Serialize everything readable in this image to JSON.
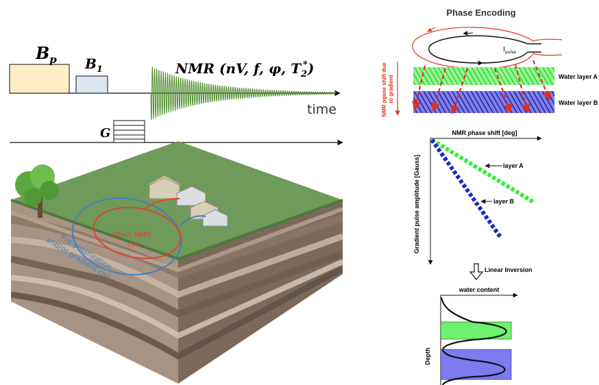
{
  "sequence": {
    "bp_label": "B",
    "bp_sub": "p",
    "b1_label": "B",
    "b1_sub": "1",
    "nmr_label_prefix": "NMR (nV, f, φ, T",
    "nmr_sub": "2",
    "nmr_sup": "*",
    "nmr_label_suffix": ")",
    "time_label": "time",
    "g_label": "G",
    "colors": {
      "bp": "#fdeec6",
      "b1": "#dce6f0",
      "signal": "#4e8b2b"
    }
  },
  "survey": {
    "main_coil_label_1": "Main NMR",
    "main_coil_label_2": "coil",
    "prepol_label_1": "Pre-polarization",
    "prepol_label_2": "and/or gradient coil",
    "colors": {
      "main_coil": "#e0442c",
      "prepol_coil": "#3f7fc0",
      "grass": "#6f9a5a"
    }
  },
  "phase_encoding": {
    "title": "Phase Encoding",
    "pulse_label": "I",
    "pulse_sub": "pulse",
    "axis_label_1": "NMR pgase shift due",
    "axis_label_2": "to gradient",
    "water_layer_a": "Water layer A",
    "water_layer_b": "Water layer B",
    "colors": {
      "layer_a": "#22dd22",
      "layer_b": "#2222cc",
      "arrows": "#e03020"
    }
  },
  "gradient_plot": {
    "x_label": "NMR phase shift [deg]",
    "y_label": "Gradient pulse amplitude [Gauss]",
    "layer_a_label": "layer A",
    "layer_b_label": "layer B",
    "colors": {
      "layer_a": "#33ee33",
      "layer_b": "#1a28c8"
    }
  },
  "inversion": {
    "label": "Linear Inversion",
    "x_label": "water content",
    "y_label": "Depth",
    "colors": {
      "layer_a": "#6ef26e",
      "layer_b": "#7c7cf0"
    }
  }
}
